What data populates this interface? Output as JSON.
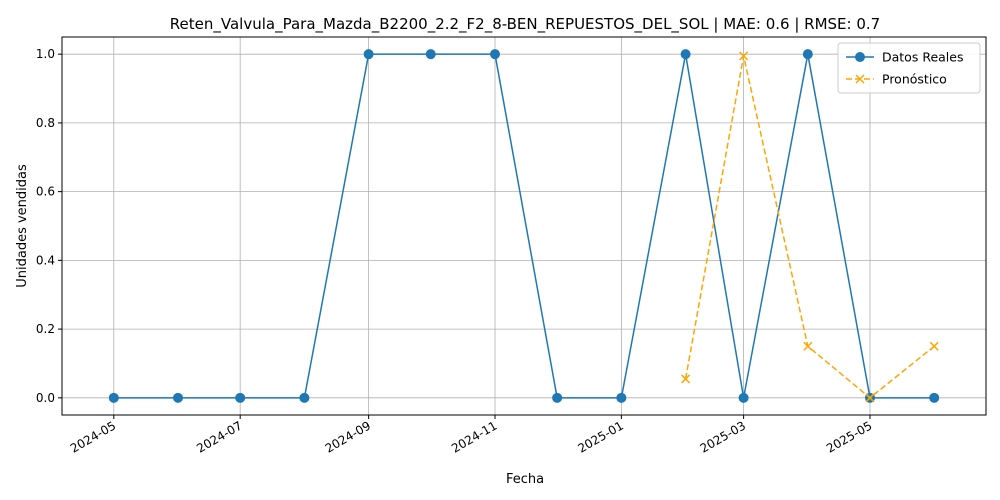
{
  "chart_data": {
    "type": "line",
    "title": "Reten_Valvula_Para_Mazda_B2200_2.2_F2_8-BEN_REPUESTOS_DEL_SOL | MAE: 0.6 | RMSE: 0.7",
    "xlabel": "Fecha",
    "ylabel": "Unidades vendidas",
    "x_ticks": [
      "2024-05",
      "2024-07",
      "2024-09",
      "2024-11",
      "2025-01",
      "2025-03",
      "2025-05"
    ],
    "y_ticks": [
      "0.0",
      "0.2",
      "0.4",
      "0.6",
      "0.8",
      "1.0"
    ],
    "xlim": [
      "2024-04-06",
      "2025-06-26"
    ],
    "ylim": [
      -0.05,
      1.05
    ],
    "grid": true,
    "legend_position": "top-right",
    "series": [
      {
        "name": "Datos Reales",
        "color": "#1f77b4",
        "style": "solid",
        "marker": "circle",
        "x": [
          "2024-05-01",
          "2024-06-01",
          "2024-07-01",
          "2024-08-01",
          "2024-09-01",
          "2024-10-01",
          "2024-11-01",
          "2024-12-01",
          "2025-01-01",
          "2025-02-01",
          "2025-03-01",
          "2025-04-01",
          "2025-05-01",
          "2025-06-01"
        ],
        "values": [
          0,
          0,
          0,
          0,
          1,
          1,
          1,
          0,
          0,
          1,
          0,
          1,
          0,
          0
        ]
      },
      {
        "name": "Pronóstico",
        "color": "#ffa500",
        "style": "dashed",
        "marker": "x",
        "x": [
          "2025-02-01",
          "2025-03-01",
          "2025-04-01",
          "2025-05-01",
          "2025-06-01"
        ],
        "values": [
          0.055,
          0.995,
          0.15,
          0.0,
          0.15
        ]
      }
    ]
  }
}
